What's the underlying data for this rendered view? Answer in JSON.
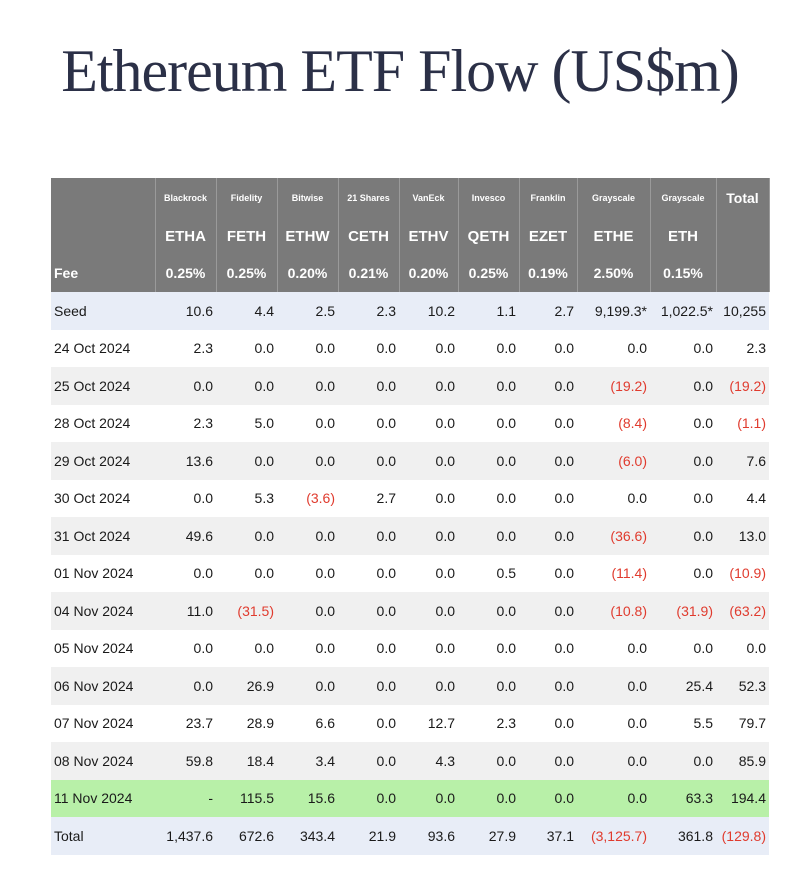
{
  "title": "Ethereum ETF Flow (US$m)",
  "issuers": [
    "",
    "Blackrock",
    "Fidelity",
    "Bitwise",
    "21 Shares",
    "VanEck",
    "Invesco",
    "Franklin",
    "Grayscale",
    "Grayscale",
    "Total"
  ],
  "tickers": [
    "",
    "ETHA",
    "FETH",
    "ETHW",
    "CETH",
    "ETHV",
    "QETH",
    "EZET",
    "ETHE",
    "ETH",
    ""
  ],
  "fees": [
    "Fee",
    "0.25%",
    "0.25%",
    "0.20%",
    "0.21%",
    "0.20%",
    "0.25%",
    "0.19%",
    "2.50%",
    "0.15%",
    ""
  ],
  "rows": [
    {
      "cells": [
        "Seed",
        "10.6",
        "4.4",
        "2.5",
        "2.3",
        "10.2",
        "1.1",
        "2.7",
        "9,199.3*",
        "1,022.5*",
        "10,255"
      ],
      "style": "seed"
    },
    {
      "cells": [
        "24 Oct 2024",
        "2.3",
        "0.0",
        "0.0",
        "0.0",
        "0.0",
        "0.0",
        "0.0",
        "0.0",
        "0.0",
        "2.3"
      ],
      "style": ""
    },
    {
      "cells": [
        "25 Oct 2024",
        "0.0",
        "0.0",
        "0.0",
        "0.0",
        "0.0",
        "0.0",
        "0.0",
        "(19.2)",
        "0.0",
        "(19.2)"
      ],
      "style": "alt"
    },
    {
      "cells": [
        "28 Oct 2024",
        "2.3",
        "5.0",
        "0.0",
        "0.0",
        "0.0",
        "0.0",
        "0.0",
        "(8.4)",
        "0.0",
        "(1.1)"
      ],
      "style": ""
    },
    {
      "cells": [
        "29 Oct 2024",
        "13.6",
        "0.0",
        "0.0",
        "0.0",
        "0.0",
        "0.0",
        "0.0",
        "(6.0)",
        "0.0",
        "7.6"
      ],
      "style": "alt"
    },
    {
      "cells": [
        "30 Oct 2024",
        "0.0",
        "5.3",
        "(3.6)",
        "2.7",
        "0.0",
        "0.0",
        "0.0",
        "0.0",
        "0.0",
        "4.4"
      ],
      "style": ""
    },
    {
      "cells": [
        "31 Oct 2024",
        "49.6",
        "0.0",
        "0.0",
        "0.0",
        "0.0",
        "0.0",
        "0.0",
        "(36.6)",
        "0.0",
        "13.0"
      ],
      "style": "alt"
    },
    {
      "cells": [
        "01 Nov 2024",
        "0.0",
        "0.0",
        "0.0",
        "0.0",
        "0.0",
        "0.5",
        "0.0",
        "(11.4)",
        "0.0",
        "(10.9)"
      ],
      "style": ""
    },
    {
      "cells": [
        "04 Nov 2024",
        "11.0",
        "(31.5)",
        "0.0",
        "0.0",
        "0.0",
        "0.0",
        "0.0",
        "(10.8)",
        "(31.9)",
        "(63.2)"
      ],
      "style": "alt"
    },
    {
      "cells": [
        "05 Nov 2024",
        "0.0",
        "0.0",
        "0.0",
        "0.0",
        "0.0",
        "0.0",
        "0.0",
        "0.0",
        "0.0",
        "0.0"
      ],
      "style": ""
    },
    {
      "cells": [
        "06 Nov 2024",
        "0.0",
        "26.9",
        "0.0",
        "0.0",
        "0.0",
        "0.0",
        "0.0",
        "0.0",
        "25.4",
        "52.3"
      ],
      "style": "alt"
    },
    {
      "cells": [
        "07 Nov 2024",
        "23.7",
        "28.9",
        "6.6",
        "0.0",
        "12.7",
        "2.3",
        "0.0",
        "0.0",
        "5.5",
        "79.7"
      ],
      "style": ""
    },
    {
      "cells": [
        "08 Nov 2024",
        "59.8",
        "18.4",
        "3.4",
        "0.0",
        "4.3",
        "0.0",
        "0.0",
        "0.0",
        "0.0",
        "85.9"
      ],
      "style": "alt"
    },
    {
      "cells": [
        "11 Nov 2024",
        "-",
        "115.5",
        "15.6",
        "0.0",
        "0.0",
        "0.0",
        "0.0",
        "0.0",
        "63.3",
        "194.4"
      ],
      "style": "highlight"
    },
    {
      "cells": [
        "Total",
        "1,437.6",
        "672.6",
        "343.4",
        "21.9",
        "93.6",
        "27.9",
        "37.1",
        "(3,125.7)",
        "361.8",
        "(129.8)"
      ],
      "style": "total-row"
    }
  ],
  "colors": {
    "header_bg": "#7a7a7a",
    "negative": "#e03b2e",
    "highlight": "#b8f0a8",
    "seed": "#e8edf7"
  }
}
